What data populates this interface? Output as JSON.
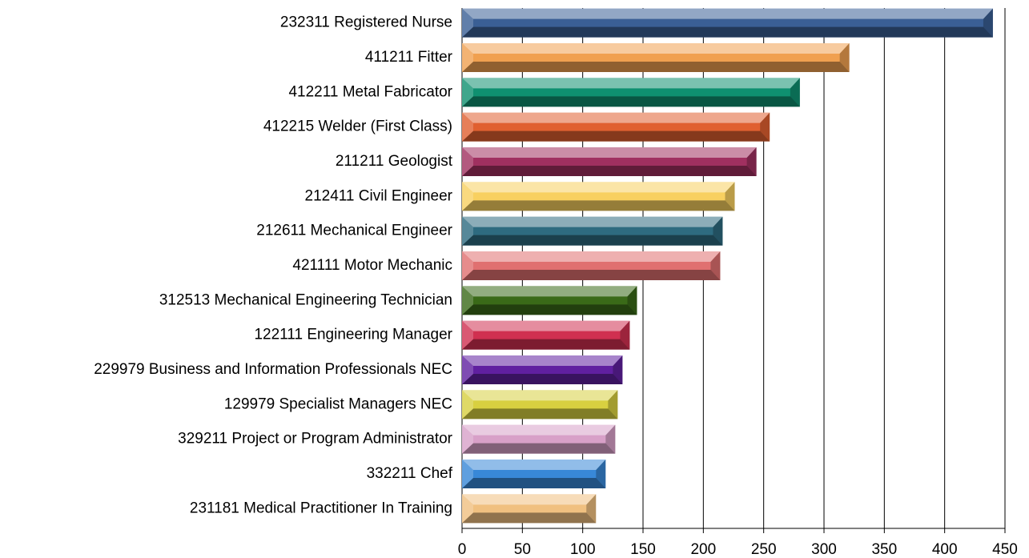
{
  "chart_data": {
    "type": "bar",
    "orientation": "horizontal",
    "categories": [
      "232311 Registered Nurse",
      "411211 Fitter",
      "412211 Metal Fabricator",
      "412215 Welder (First Class)",
      "211211 Geologist",
      "212411 Civil Engineer",
      "212611 Mechanical Engineer",
      "421111 Motor Mechanic",
      "312513 Mechanical Engineering Technician",
      "122111 Engineering Manager",
      "229979 Business and Information Professionals NEC",
      "129979 Specialist Managers NEC",
      "329211 Project or Program Administrator",
      "332211 Chef",
      "231181 Medical Practitioner In Training"
    ],
    "values": [
      440,
      321,
      280,
      255,
      244,
      226,
      216,
      214,
      145,
      139,
      133,
      129,
      127,
      119,
      111
    ],
    "colors": [
      "#3a5f95",
      "#f0a050",
      "#0f9070",
      "#e06030",
      "#a03060",
      "#f8d060",
      "#2e6b80",
      "#e07070",
      "#3a6a18",
      "#d03050",
      "#6020a0",
      "#d8d040",
      "#d8a0c8",
      "#3888d8",
      "#f0c080"
    ],
    "xlim": [
      0,
      450
    ],
    "xticks": [
      0,
      50,
      100,
      150,
      200,
      250,
      300,
      350,
      400,
      450
    ],
    "grid": true
  }
}
